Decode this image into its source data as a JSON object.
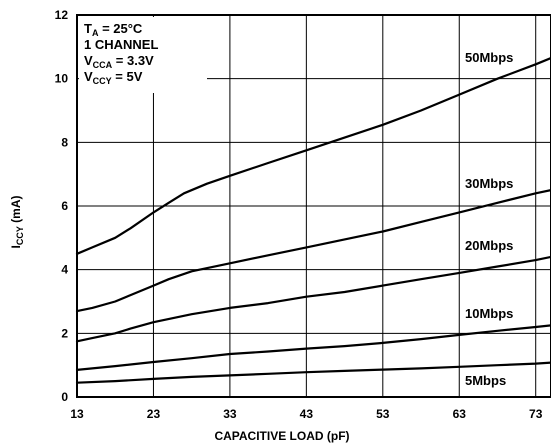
{
  "chart_data": {
    "type": "line",
    "title": "",
    "xlabel": "CAPACITIVE LOAD (pF)",
    "ylabel": {
      "main": "I",
      "sub": "CCY",
      "unit": " (mA)"
    },
    "xlim": [
      13,
      75
    ],
    "ylim": [
      0,
      12
    ],
    "x_ticks": [
      13,
      23,
      33,
      43,
      53,
      63,
      73
    ],
    "y_ticks": [
      0,
      2,
      4,
      6,
      8,
      10,
      12
    ],
    "grid": true,
    "annotations": [
      {
        "main": "T",
        "sub": "A",
        "rest": " = 25°C"
      },
      {
        "main": "1 CHANNEL",
        "sub": "",
        "rest": ""
      },
      {
        "main": "V",
        "sub": "CCA",
        "rest": " = 3.3V"
      },
      {
        "main": "V",
        "sub": "CCY",
        "rest": " =  5V"
      }
    ],
    "series": [
      {
        "name": "50Mbps",
        "x": [
          13,
          15,
          18,
          20,
          23,
          25,
          27,
          30,
          33,
          38,
          43,
          48,
          53,
          58,
          63,
          68,
          73,
          75
        ],
        "y": [
          4.5,
          4.7,
          5.0,
          5.3,
          5.8,
          6.1,
          6.4,
          6.7,
          6.95,
          7.35,
          7.75,
          8.15,
          8.55,
          9.0,
          9.5,
          10.0,
          10.45,
          10.65
        ]
      },
      {
        "name": "30Mbps",
        "x": [
          13,
          15,
          18,
          20,
          23,
          25,
          28,
          33,
          38,
          43,
          48,
          53,
          58,
          63,
          68,
          73,
          75
        ],
        "y": [
          2.7,
          2.8,
          3.0,
          3.2,
          3.5,
          3.7,
          3.95,
          4.2,
          4.45,
          4.7,
          4.95,
          5.2,
          5.5,
          5.8,
          6.1,
          6.4,
          6.5
        ]
      },
      {
        "name": "20Mbps",
        "x": [
          13,
          15,
          18,
          20,
          23,
          28,
          33,
          38,
          43,
          48,
          53,
          58,
          63,
          68,
          73,
          75
        ],
        "y": [
          1.75,
          1.85,
          2.0,
          2.15,
          2.35,
          2.6,
          2.8,
          2.95,
          3.15,
          3.3,
          3.5,
          3.7,
          3.9,
          4.1,
          4.3,
          4.4
        ]
      },
      {
        "name": "10Mbps",
        "x": [
          13,
          18,
          23,
          28,
          33,
          38,
          43,
          48,
          53,
          58,
          63,
          68,
          73,
          75
        ],
        "y": [
          0.85,
          0.97,
          1.1,
          1.22,
          1.35,
          1.43,
          1.52,
          1.6,
          1.7,
          1.82,
          1.95,
          2.08,
          2.2,
          2.25
        ]
      },
      {
        "name": "5Mbps",
        "x": [
          13,
          18,
          23,
          28,
          33,
          38,
          43,
          48,
          53,
          58,
          63,
          68,
          73,
          75
        ],
        "y": [
          0.45,
          0.5,
          0.57,
          0.63,
          0.68,
          0.73,
          0.78,
          0.82,
          0.86,
          0.9,
          0.95,
          1.0,
          1.05,
          1.08
        ]
      }
    ]
  }
}
